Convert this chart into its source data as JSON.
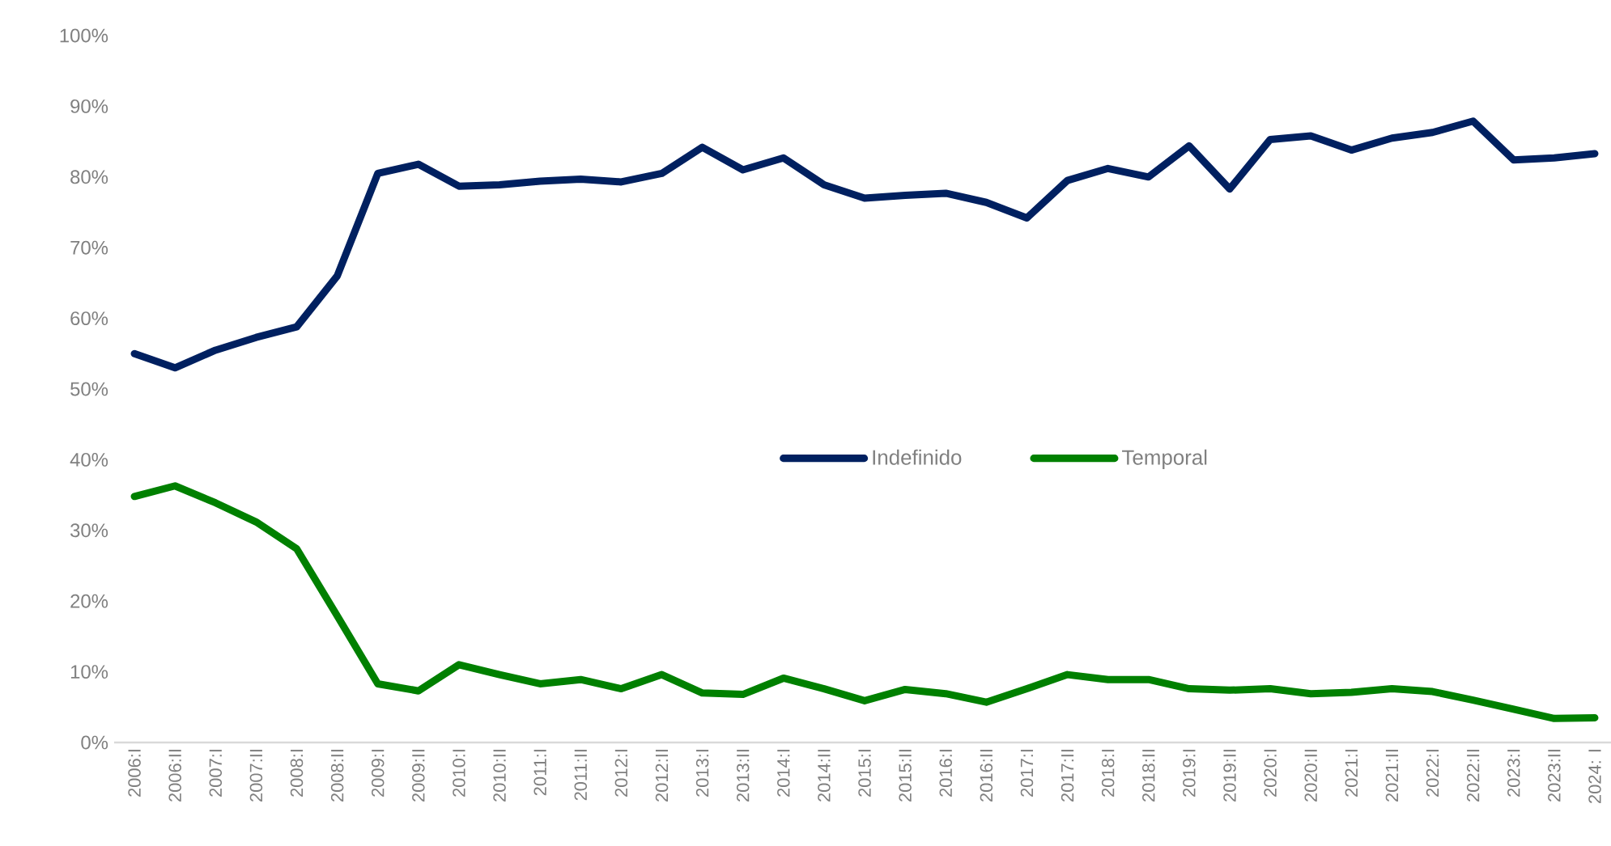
{
  "chart_data": {
    "type": "line",
    "categories": [
      "2006:I",
      "2006:II",
      "2007:I",
      "2007:II",
      "2008:I",
      "2008:II",
      "2009:I",
      "2009:II",
      "2010:I",
      "2010:II",
      "2011:I",
      "2011:II",
      "2012:I",
      "2012:II",
      "2013:I",
      "2013:II",
      "2014:I",
      "2014:II",
      "2015:I",
      "2015:II",
      "2016:I",
      "2016:II",
      "2017:I",
      "2017:II",
      "2018:I",
      "2018:II",
      "2019:I",
      "2019:II",
      "2020:I",
      "2020:II",
      "2021:I",
      "2021:II",
      "2022:I",
      "2022:II",
      "2023:I",
      "2023:II",
      "2024: I"
    ],
    "series": [
      {
        "name": "Indefinido",
        "color": "#002060",
        "values": [
          55,
          53,
          55.5,
          57.3,
          58.8,
          66,
          80.5,
          81.8,
          78.7,
          78.9,
          79.4,
          79.7,
          79.3,
          80.5,
          84.2,
          81,
          82.7,
          78.9,
          77,
          77.4,
          77.7,
          76.4,
          74.2,
          79.5,
          81.2,
          80,
          84.4,
          78.3,
          85.3,
          85.8,
          83.8,
          85.5,
          86.3,
          87.9,
          82.4,
          82.7,
          83.3
        ]
      },
      {
        "name": "Temporal",
        "color": "#008000",
        "values": [
          34.8,
          36.3,
          33.9,
          31.2,
          27.4,
          17.9,
          8.3,
          7.3,
          11,
          9.6,
          8.3,
          8.9,
          7.6,
          9.6,
          7,
          6.8,
          9.1,
          7.6,
          5.9,
          7.5,
          6.9,
          5.7,
          7.6,
          9.6,
          8.9,
          8.9,
          7.6,
          7.4,
          7.6,
          6.9,
          7.1,
          7.6,
          7.2,
          6,
          4.7,
          3.4,
          3.5
        ]
      }
    ],
    "ylim": [
      0,
      100
    ],
    "yticks": [
      {
        "value": 0,
        "label": "0%"
      },
      {
        "value": 10,
        "label": "10%"
      },
      {
        "value": 20,
        "label": "20%"
      },
      {
        "value": 30,
        "label": "30%"
      },
      {
        "value": 40,
        "label": "40%"
      },
      {
        "value": 50,
        "label": "50%"
      },
      {
        "value": 60,
        "label": "60%"
      },
      {
        "value": 70,
        "label": "70%"
      },
      {
        "value": 80,
        "label": "80%"
      },
      {
        "value": 90,
        "label": "90%"
      },
      {
        "value": 100,
        "label": "100%"
      }
    ],
    "grid": false,
    "legend": "center",
    "marker": "none",
    "line_style": "solid"
  }
}
